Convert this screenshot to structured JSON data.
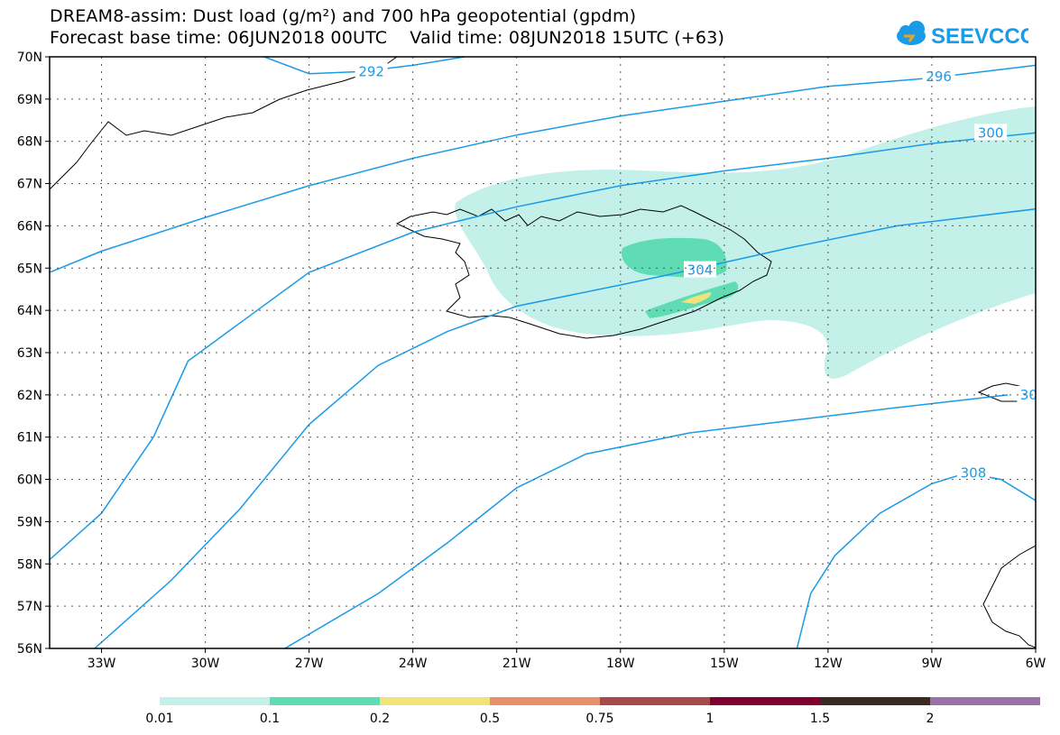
{
  "header": {
    "title_line1": "DREAM8-assim: Dust load (g/m²) and 700 hPa geopotential (gpdm)",
    "title_line2": "Forecast base time: 06JUN2018 00UTC    Valid time: 08JUN2018 15UTC (+63)"
  },
  "logo": {
    "text": "SEEVCCC",
    "icon": "cloud-logo-icon",
    "color": "#1a9be6"
  },
  "map": {
    "lon_range": [
      -34.5,
      -6
    ],
    "lat_range": [
      56,
      70
    ],
    "lat_ticks": [
      {
        "value": 70,
        "label": "70N"
      },
      {
        "value": 69,
        "label": "69N"
      },
      {
        "value": 68,
        "label": "68N"
      },
      {
        "value": 67,
        "label": "67N"
      },
      {
        "value": 66,
        "label": "66N"
      },
      {
        "value": 65,
        "label": "65N"
      },
      {
        "value": 64,
        "label": "64N"
      },
      {
        "value": 63,
        "label": "63N"
      },
      {
        "value": 62,
        "label": "62N"
      },
      {
        "value": 61,
        "label": "61N"
      },
      {
        "value": 60,
        "label": "60N"
      },
      {
        "value": 59,
        "label": "59N"
      },
      {
        "value": 58,
        "label": "58N"
      },
      {
        "value": 57,
        "label": "57N"
      },
      {
        "value": 56,
        "label": "56N"
      }
    ],
    "lon_ticks": [
      {
        "value": -33,
        "label": "33W"
      },
      {
        "value": -30,
        "label": "30W"
      },
      {
        "value": -27,
        "label": "27W"
      },
      {
        "value": -24,
        "label": "24W"
      },
      {
        "value": -21,
        "label": "21W"
      },
      {
        "value": -18,
        "label": "18W"
      },
      {
        "value": -15,
        "label": "15W"
      },
      {
        "value": -12,
        "label": "12W"
      },
      {
        "value": -9,
        "label": "9W"
      },
      {
        "value": -6,
        "label": "6W"
      }
    ],
    "contour_color": "#1a9be6",
    "contours": [
      {
        "label": "292",
        "label_pos": [
          -25.2,
          69.65
        ],
        "points": [
          [
            -28.3,
            70
          ],
          [
            -27,
            69.6
          ],
          [
            -25.5,
            69.65
          ],
          [
            -24,
            69.8
          ],
          [
            -22.5,
            70
          ]
        ]
      },
      {
        "label": "296",
        "label_pos": [
          -8.8,
          69.53
        ],
        "points": [
          [
            -34.5,
            64.9
          ],
          [
            -33,
            65.4
          ],
          [
            -30,
            66.2
          ],
          [
            -27,
            66.95
          ],
          [
            -24,
            67.6
          ],
          [
            -21,
            68.15
          ],
          [
            -18,
            68.6
          ],
          [
            -15,
            68.95
          ],
          [
            -12,
            69.3
          ],
          [
            -9,
            69.5
          ],
          [
            -6,
            69.8
          ]
        ]
      },
      {
        "label": "300",
        "label_pos": [
          -7.3,
          68.2
        ],
        "points": [
          [
            -34.5,
            58.1
          ],
          [
            -33,
            59.2
          ],
          [
            -31.5,
            61
          ],
          [
            -30.5,
            62.8
          ],
          [
            -29,
            63.7
          ],
          [
            -27,
            64.9
          ],
          [
            -24,
            65.85
          ],
          [
            -21,
            66.45
          ],
          [
            -18,
            66.95
          ],
          [
            -15,
            67.3
          ],
          [
            -12,
            67.6
          ],
          [
            -9,
            67.95
          ],
          [
            -6,
            68.2
          ]
        ]
      },
      {
        "label": "304",
        "label_pos": [
          -15.7,
          64.95
        ],
        "points": [
          [
            -33.2,
            56
          ],
          [
            -31,
            57.6
          ],
          [
            -29,
            59.3
          ],
          [
            -27,
            61.3
          ],
          [
            -25,
            62.7
          ],
          [
            -23,
            63.5
          ],
          [
            -21,
            64.1
          ],
          [
            -18,
            64.6
          ],
          [
            -16,
            64.95
          ],
          [
            -13,
            65.5
          ],
          [
            -10,
            66
          ],
          [
            -6,
            66.4
          ]
        ]
      },
      {
        "label": "30",
        "label_pos": [
          -6.2,
          62.0
        ],
        "points": [
          [
            -27.7,
            56
          ],
          [
            -25,
            57.3
          ],
          [
            -23,
            58.5
          ],
          [
            -21,
            59.8
          ],
          [
            -19,
            60.6
          ],
          [
            -16,
            61.1
          ],
          [
            -13,
            61.4
          ],
          [
            -10,
            61.7
          ],
          [
            -6.8,
            62
          ]
        ]
      },
      {
        "label": "308",
        "label_pos": [
          -7.8,
          60.15
        ],
        "points": [
          [
            -12.9,
            56
          ],
          [
            -12.5,
            57.3
          ],
          [
            -11.8,
            58.2
          ],
          [
            -10.5,
            59.2
          ],
          [
            -9,
            59.9
          ],
          [
            -8,
            60.15
          ],
          [
            -7,
            60
          ],
          [
            -6,
            59.5
          ]
        ]
      }
    ]
  },
  "colorbar": {
    "tick_labels": [
      "0.01",
      "0.1",
      "0.2",
      "0.5",
      "0.75",
      "1",
      "1.5",
      "2"
    ],
    "colors": [
      "#c4f0ea",
      "#5fdcb4",
      "#f2e27a",
      "#e8906a",
      "#a64a4a",
      "#800030",
      "#3a2a22",
      "#9a70a8"
    ]
  }
}
